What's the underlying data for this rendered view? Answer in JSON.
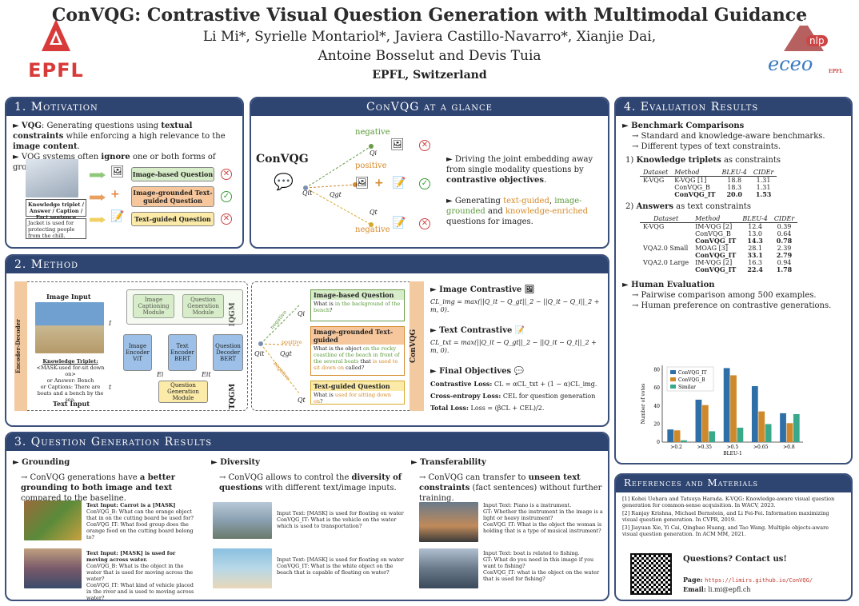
{
  "header": {
    "title": "ConVQG: Contrastive Visual Question Generation with Multimodal Guidance",
    "authors_line1": "Li Mi*, Syrielle Montariol*, Javiera Castillo-Navarro*, Xianjie Dai,",
    "authors_line2": "Antoine Bosselut and Devis Tuia",
    "affiliation": "EPFL, Switzerland",
    "logo_left": "EPFL",
    "logo_right_nlp": "nlp",
    "logo_right_eceo": "eceo",
    "logo_right_small": "EPFL"
  },
  "motivation": {
    "heading": "1.   Motivation",
    "b1_pre": "VQG",
    "b1_mid": ": Generating questions using ",
    "b1_bold": "textual constraints",
    "b1_post": " while enforcing a high relevance to the ",
    "b1_bold2": "image content",
    "b1_end": ".",
    "b2_pre": "VQG systems often ",
    "b2_bold": "ignore",
    "b2_post": " one or both forms of grounding.",
    "kt_box": "Knowledge triplet / Answer / Caption / Fact sentence",
    "kt_text": "Jacket is used for protecting people from the chill.",
    "q1": "Image-based Question",
    "q2": "Image-grounded Text-guided Question",
    "q3": "Text-guided Question"
  },
  "glance": {
    "heading": "ConVQG at a glance",
    "model": "ConVQG",
    "neg1": "negative",
    "pos": "positive",
    "neg2": "negative",
    "qi": "Qi",
    "qit": "Qit",
    "qgt": "Qgt",
    "qt": "Qt",
    "b1": "Driving the joint embedding away from single modality questions by ",
    "b1_bold": "contrastive objectives",
    "b1_end": ".",
    "b2_pre": "Generating ",
    "b2_green": "text-guided",
    "b2_mid": ", ",
    "b2_green2": "image-grounded",
    "b2_mid2": " and ",
    "b2_orange": "knowledge-enriched",
    "b2_post": " questions for images."
  },
  "method": {
    "heading": "2.   Method",
    "encdec": "Encoder-Decoder",
    "image_input": "Image Input",
    "text_input": "Text Input",
    "kt": "Knowledge Triplet:",
    "kt2": "<MASK-used for-sit down on>",
    "ans": "or Answer: Bench",
    "cap": "or Captions: There are boats and a bench by the sea.",
    "i_label": "I",
    "t_label": "t",
    "img_cap": "Image Captioning Module",
    "qgm1": "Question Generation Module",
    "iqgm": "IQGM",
    "tqgm": "TQGM",
    "img_enc": "Image Encoder",
    "img_enc_sub": "ViT",
    "txt_enc": "Text Encoder",
    "txt_enc_sub": "BERT",
    "q_dec": "Question Decoder",
    "q_dec_sub": "BERT",
    "ei": "Ei",
    "eit": "Eit",
    "qgm2": "Question Generation Module",
    "negative": "negative",
    "positive": "positive",
    "negative2": "negative",
    "qi": "Qi",
    "qit": "Qit",
    "qgt": "Qgt",
    "qt": "Qt",
    "ib_q_title": "Image-based Question",
    "ib_q_pre": "What is ",
    "ib_q_green": "in the background of the bench",
    "ib_q_post": "?",
    "ig_q_title": "Image-grounded Text-guided",
    "ig_q_pre": "What is the object ",
    "ig_q_green": "on the rocky coastline of the beach in front of the several boats",
    "ig_q_mid": " that ",
    "ig_q_orange": "is used to sit down on",
    "ig_q_post": " called?",
    "tg_q_title": "Text-guided Question",
    "tg_q_pre": "What is ",
    "tg_q_orange": "used for sitting down on",
    "tg_q_post": "?",
    "convqg": "ConVQG",
    "ic_title": "Image Contrastive",
    "ic_formula": "CL_img = max(||Q_it − Q_gt||_2 − ||Q_it − Q_i||_2 + m, 0).",
    "tc_title": "Text Contrastive",
    "tc_formula": "CL_txt = max(||Q_it − Q_gt||_2 − ||Q_it − Q_t||_2 + m, 0).",
    "fo_title": "Final Objectives",
    "fo1_label": "Contrastive Loss:",
    "fo1": " CL = αCL_txt + (1 − α)CL_img.",
    "fo2_label": "Cross-entropy Loss:",
    "fo2": " CEL for question generation",
    "fo3_label": "Total Loss:",
    "fo3": " Loss = (βCL + CEL)/2."
  },
  "results": {
    "heading": "3.   Question Generation Results",
    "g_title": "Grounding",
    "g_text_pre": "→ ConVQG generations have ",
    "g_text_bold": "a better grounding to both image and text",
    "g_text_post": " compared to the baseline.",
    "d_title": "Diversity",
    "d_text_pre": "→ ConVQG allows to control the ",
    "d_text_bold": "diversity of questions",
    "d_text_post": " with different text/image inputs.",
    "t_title": "Transferability",
    "t_text_pre": "→ ConVQG can transfer to ",
    "t_text_bold": "unseen text constraints",
    "t_text_post": " (fact sentences) without further training.",
    "g1_in": "Text Input: Carrot is a [MASK]",
    "g1_a": "ConVQG_B: What can the orange object that in on the cutting board be used for?",
    "g1_b": "ConVQG_IT: What food group does the orange food on the cutting board belong to?",
    "g2_in": "Text Input: [MASK] is used for moving across water.",
    "g2_a": "ConVQG_B: What is the object in the water that is used for moving across the water?",
    "g2_b": "ConVQG_IT: What kind of vehicle placed in the river and is used to moving across water?",
    "d1_in": "Input Text: [MASK] is used for floating on water",
    "d1_a": "ConVQG_IT: What is the vehicle on the water which is used to transportation?",
    "d2_in": "Input Text: [MASK] is used for floating on water",
    "d2_a": "ConVQG_IT: What is the white object on the beach that is capable of floating on water?",
    "t1_in": "Input Text: Piano is a instrument.",
    "t1_gt": "GT: Whether the instrument in the image is a light or heavy instrument?",
    "t1_a": "ConVQG_IT: What is the object the woman is holding that is a type of musical instrument?",
    "t2_in": "Input Text: boat is related to fishing.",
    "t2_gt": "GT: What do you need in this image if you want to fishing?",
    "t2_a": "ConVQG_IT: what is the object on the water that is used for fishing?"
  },
  "evaluation": {
    "heading": "4.   Evaluation Results",
    "bench_title": "Benchmark Comparisons",
    "bench_1": "→ Standard and knowledge-aware benchmarks.",
    "bench_2": "→ Different types of text constraints.",
    "kt_title_pre": "1) ",
    "kt_title_bold": "Knowledge triplets",
    "kt_title_post": " as constraints",
    "ans_title_pre": "2) ",
    "ans_title_bold": "Answers",
    "ans_title_post": " as text constraints",
    "cols": [
      "Dataset",
      "Method",
      "BLEU-4",
      "CIDEr"
    ],
    "table1": [
      {
        "dataset": "K-VQG",
        "method": "K-VQG [1]",
        "bleu": "18.8",
        "cider": "1.31",
        "bold": false
      },
      {
        "dataset": "",
        "method": "ConVQG_B",
        "bleu": "18.3",
        "cider": "1.31",
        "bold": false
      },
      {
        "dataset": "",
        "method": "ConVQG_IT",
        "bleu": "20.0",
        "cider": "1.53",
        "bold": true
      }
    ],
    "table2": [
      {
        "dataset": "K-VQG",
        "method": "IM-VQG [2]",
        "bleu": "12.4",
        "cider": "0.39",
        "bold": false
      },
      {
        "dataset": "",
        "method": "ConVQG_B",
        "bleu": "13.0",
        "cider": "0.64",
        "bold": false
      },
      {
        "dataset": "",
        "method": "ConVQG_IT",
        "bleu": "14.3",
        "cider": "0.78",
        "bold": true
      },
      {
        "dataset": "VQA2.0 Small",
        "method": "MOAG [3]",
        "bleu": "28.1",
        "cider": "2.39",
        "bold": false
      },
      {
        "dataset": "",
        "method": "ConVQG_IT",
        "bleu": "33.1",
        "cider": "2.79",
        "bold": true
      },
      {
        "dataset": "VQA2.0 Large",
        "method": "IM-VQG [2]",
        "bleu": "16.3",
        "cider": "0.94",
        "bold": false
      },
      {
        "dataset": "",
        "method": "ConVQG_IT",
        "bleu": "22.4",
        "cider": "1.78",
        "bold": true
      }
    ],
    "human_title": "Human Evaluation",
    "human_1": "→ Pairwise comparison among 500 examples.",
    "human_2": "→ Human preference on contrastive generations."
  },
  "chart_data": {
    "type": "bar",
    "categories": [
      ">0.2",
      ">0.35",
      ">0.5",
      ">0.65",
      ">0.8"
    ],
    "series": [
      {
        "name": "ConVQG_IT",
        "color": "#2f6fa8",
        "values": [
          14,
          47,
          82,
          62,
          32
        ]
      },
      {
        "name": "ConVQG_B",
        "color": "#d0892a",
        "values": [
          13,
          41,
          74,
          34,
          21
        ]
      },
      {
        "name": "Similar",
        "color": "#3aa88a",
        "values": [
          2,
          12,
          16,
          20,
          31
        ]
      }
    ],
    "xlabel": "BLEU-1",
    "ylabel": "Number of votes",
    "ylim": [
      0,
      85
    ],
    "yticks": [
      0,
      20,
      40,
      60,
      80
    ],
    "legend": "top-left"
  },
  "references": {
    "heading": "References and Materials",
    "items": [
      "[1]  Kohei Uehara and Tatsuya Harada.  K-VQG: Knowledge-aware visual question generation for common-sense acquisition. In WACV, 2023.",
      "[2]  Ranjay Krishna, Michael Bernstein, and Li Fei-Fei.  Information maximizing visual question generation. In CVPR, 2019.",
      "[3]  Jiayuan Xie, Yi Cai, Qingbao Huang, and Tao Wang.  Multiple objects-aware visual question generation. In ACM MM, 2021."
    ],
    "contact": "Questions? Contact us!",
    "page_label": "Page:",
    "page_url": "https://limirs.github.io/ConVQG/",
    "email_label": "Email:",
    "email": "li.mi@epfl.ch"
  }
}
